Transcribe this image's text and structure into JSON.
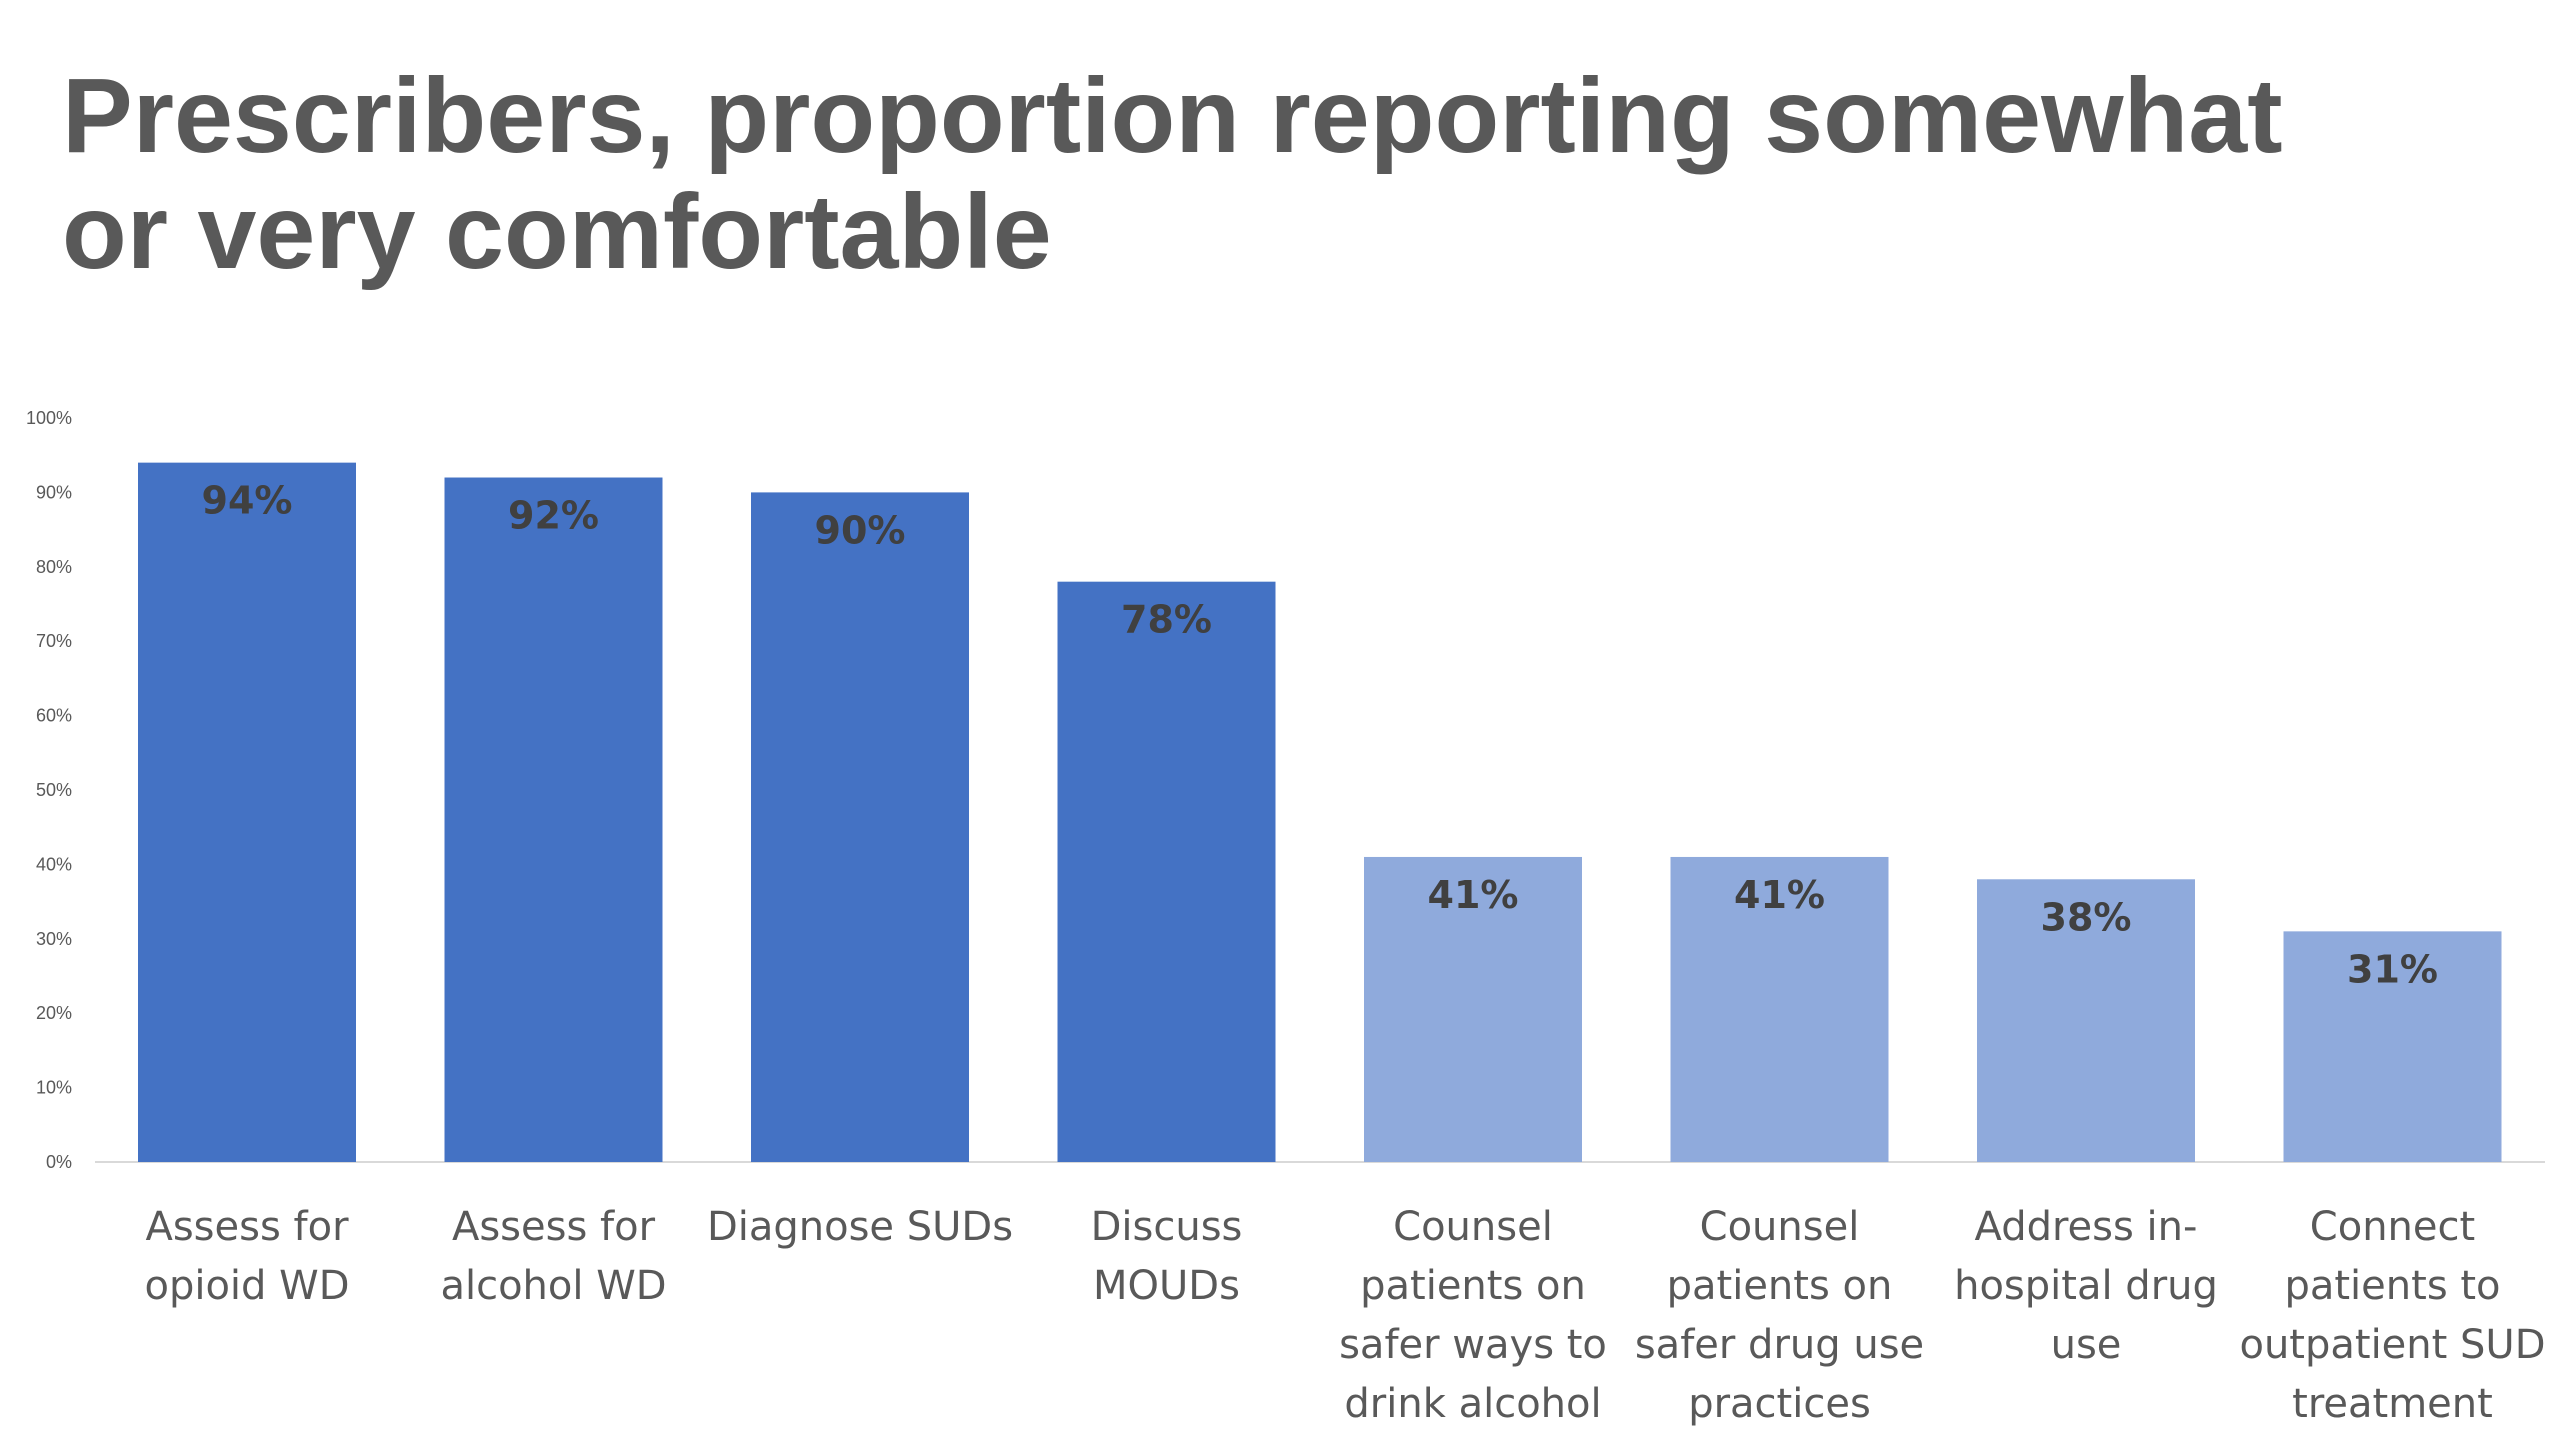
{
  "title_lines": [
    "Prescribers, proportion reporting somewhat",
    "or very comfortable"
  ],
  "chart_data": {
    "type": "bar",
    "title": "Prescribers, proportion reporting somewhat or very comfortable",
    "categories": [
      [
        "Assess for",
        "opioid WD"
      ],
      [
        "Assess for",
        "alcohol WD"
      ],
      [
        "Diagnose SUDs"
      ],
      [
        "Discuss",
        "MOUDs"
      ],
      [
        "Counsel",
        "patients on",
        "safer ways to",
        "drink alcohol"
      ],
      [
        "Counsel",
        "patients on",
        "safer drug use",
        "practices"
      ],
      [
        "Address in-",
        "hospital drug",
        "use"
      ],
      [
        "Connect",
        "patients to",
        "outpatient SUD",
        "treatment"
      ]
    ],
    "values": [
      94,
      92,
      90,
      78,
      41,
      41,
      38,
      31
    ],
    "value_labels": [
      "94%",
      "92%",
      "90%",
      "78%",
      "41%",
      "41%",
      "38%",
      "31%"
    ],
    "bar_colors": [
      "#4472C4",
      "#4472C4",
      "#4472C4",
      "#4472C4",
      "#8FAADC",
      "#8FAADC",
      "#8FAADC",
      "#8FAADC"
    ],
    "ylim": [
      0,
      100
    ],
    "yticks": [
      "0%",
      "10%",
      "20%",
      "30%",
      "40%",
      "50%",
      "60%",
      "70%",
      "80%",
      "90%",
      "100%"
    ],
    "grid": false,
    "legend": "none"
  }
}
